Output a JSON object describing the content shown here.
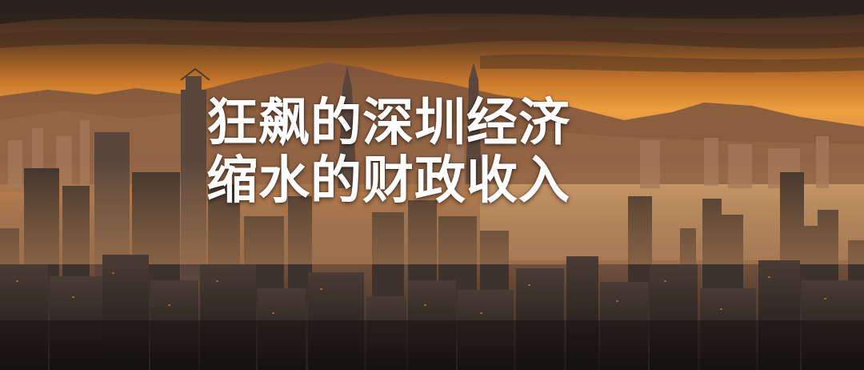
{
  "headline": {
    "line1": "狂飙的深圳经济",
    "line2": "缩水的财政收入"
  },
  "scene": {
    "description_icon": "city-skyline-sunset",
    "colors": {
      "sky_top": "#3a2a22",
      "sky_glow": "#e08a2a",
      "horizon": "#f2a440",
      "mountain": "#6e4a38",
      "water": "#b98b5e",
      "building_dark": "#1e1a1a",
      "building_mid": "#3a302c",
      "building_light": "#6a5a50"
    }
  }
}
